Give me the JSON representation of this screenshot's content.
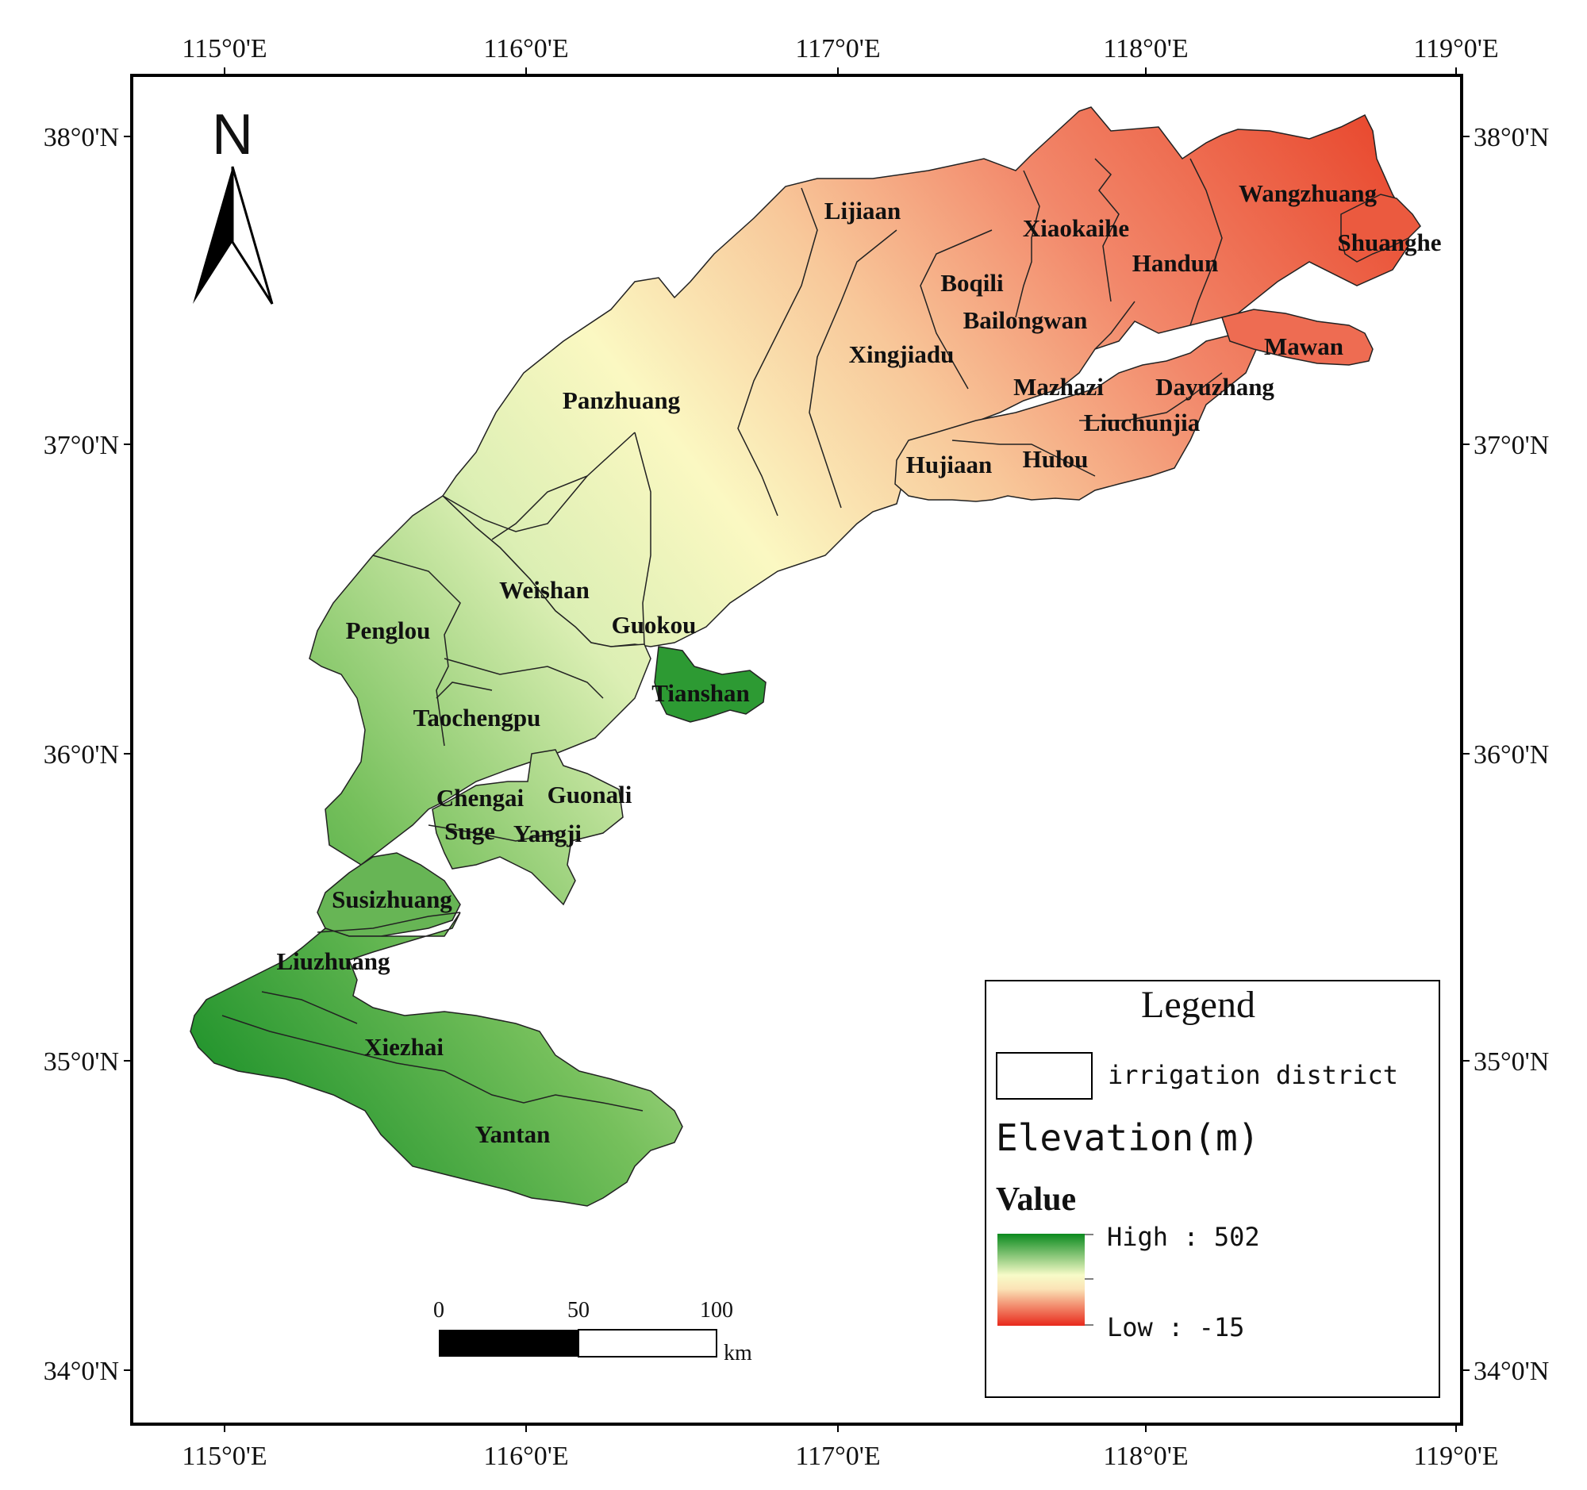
{
  "map": {
    "top_ticks": [
      "115°0'E",
      "116°0'E",
      "117°0'E",
      "118°0'E",
      "119°0'E"
    ],
    "bottom_ticks": [
      "115°0'E",
      "116°0'E",
      "117°0'E",
      "118°0'E",
      "119°0'E"
    ],
    "left_ticks": [
      "38°0'N",
      "37°0'N",
      "36°0'N",
      "35°0'N",
      "34°0'N"
    ],
    "right_ticks": [
      "38°0'N",
      "37°0'N",
      "36°0'N",
      "35°0'N",
      "34°0'N"
    ],
    "north_label": "N",
    "districts": [
      "Lijiaan",
      "Xiaokaihe",
      "Wangzhuang",
      "Shuanghe",
      "Handun",
      "Boqili",
      "Bailongwan",
      "Xingjiadu",
      "Mawan",
      "Panzhuang",
      "Mazhazi",
      "Dayuzhang",
      "Liuchunjia",
      "Hujiaan",
      "Hulou",
      "Weishan",
      "Penglou",
      "Guokou",
      "Tianshan",
      "Taochengpu",
      "Chengai",
      "Guonali",
      "Suge",
      "Yangji",
      "Susizhuang",
      "Liuzhuang",
      "Xiezhai",
      "Yantan"
    ]
  },
  "scale_bar": {
    "labels": [
      "0",
      "50",
      "100"
    ],
    "unit": "km"
  },
  "legend": {
    "title": "Legend",
    "boundary_label": "irrigation district",
    "raster_title": "Elevation(m)",
    "value_header": "Value",
    "high_label": "High : 502",
    "low_label": "Low : -15",
    "high_value": 502,
    "low_value": -15
  },
  "colors": {
    "high": "#0a8a1e",
    "mid": "#fbfbc0",
    "low": "#e8291b",
    "border": "#000000"
  }
}
